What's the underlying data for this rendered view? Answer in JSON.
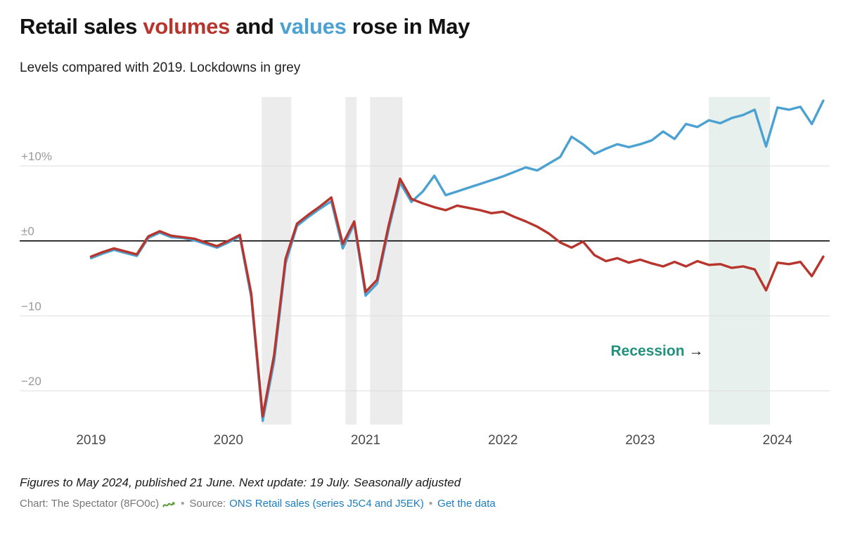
{
  "header": {
    "title_parts": [
      {
        "text": "Retail sales ",
        "color": "#121212"
      },
      {
        "text": "volumes",
        "color": "#b8352d"
      },
      {
        "text": " and ",
        "color": "#121212"
      },
      {
        "text": "values",
        "color": "#4ba1d1"
      },
      {
        "text": " rose in May",
        "color": "#121212"
      }
    ],
    "subtitle": "Levels compared with 2019. Lockdowns in grey"
  },
  "chart_data": {
    "type": "line",
    "title": "Retail sales volumes and values rose in May",
    "subtitle": "Levels compared with 2019. Lockdowns in grey",
    "x_start": 2019.0,
    "x_step_years": 0.0833333,
    "xlim": [
      2018.48,
      2024.38
    ],
    "ylim": [
      -24.5,
      19.2
    ],
    "grid": true,
    "grid_color": "#dedede",
    "zero_line_color": "#000000",
    "axis_text_color": "#9a9a9a",
    "x_text_color": "#4a4a4a",
    "x_ticks": [
      {
        "value": 2019,
        "label": "2019"
      },
      {
        "value": 2020,
        "label": "2020"
      },
      {
        "value": 2021,
        "label": "2021"
      },
      {
        "value": 2022,
        "label": "2022"
      },
      {
        "value": 2023,
        "label": "2023"
      },
      {
        "value": 2024,
        "label": "2024"
      }
    ],
    "y_ticks": [
      {
        "value": 10,
        "label": "+10%"
      },
      {
        "value": 0,
        "label": "±0"
      },
      {
        "value": -10,
        "label": "−10"
      },
      {
        "value": -20,
        "label": "−20"
      }
    ],
    "series": [
      {
        "name": "values",
        "color": "#4ba1d1",
        "values": [
          -2.3,
          -1.7,
          -1.2,
          -1.6,
          -2.0,
          0.4,
          1.1,
          0.5,
          0.4,
          0.1,
          -0.4,
          -0.9,
          -0.2,
          0.6,
          -7.5,
          -24.0,
          -16.0,
          -3.0,
          2.0,
          3.2,
          4.3,
          5.3,
          -1.0,
          2.3,
          -7.3,
          -5.7,
          1.5,
          7.8,
          5.2,
          6.6,
          8.7,
          6.1,
          6.6,
          7.1,
          7.6,
          8.1,
          8.6,
          9.2,
          9.8,
          9.4,
          10.3,
          11.2,
          13.9,
          12.9,
          11.6,
          12.3,
          12.9,
          12.5,
          12.9,
          13.4,
          14.6,
          13.6,
          15.6,
          15.2,
          16.1,
          15.7,
          16.4,
          16.8,
          17.5,
          12.6,
          17.8,
          17.5,
          17.9,
          15.6,
          18.7
        ]
      },
      {
        "name": "volumes",
        "color": "#b8352d",
        "values": [
          -2.1,
          -1.5,
          -1.0,
          -1.4,
          -1.8,
          0.6,
          1.3,
          0.7,
          0.5,
          0.3,
          -0.2,
          -0.7,
          0.0,
          0.8,
          -7.0,
          -23.4,
          -15.2,
          -2.4,
          2.3,
          3.5,
          4.6,
          5.8,
          -0.4,
          2.6,
          -6.8,
          -5.2,
          2.0,
          8.3,
          5.6,
          5.0,
          4.5,
          4.1,
          4.7,
          4.4,
          4.1,
          3.7,
          3.9,
          3.2,
          2.6,
          1.9,
          1.0,
          -0.2,
          -0.9,
          -0.1,
          -1.9,
          -2.7,
          -2.3,
          -2.9,
          -2.5,
          -3.0,
          -3.4,
          -2.8,
          -3.4,
          -2.7,
          -3.2,
          -3.1,
          -3.6,
          -3.4,
          -3.8,
          -6.6,
          -2.9,
          -3.1,
          -2.8,
          -4.7,
          -2.1
        ]
      }
    ],
    "bands": [
      {
        "name": "lockdown-1",
        "kind": "lockdown",
        "x0": 2020.243,
        "x1": 2020.458,
        "color": "#ececec"
      },
      {
        "name": "lockdown-2",
        "kind": "lockdown",
        "x0": 2020.853,
        "x1": 2020.935,
        "color": "#ececec"
      },
      {
        "name": "lockdown-3",
        "kind": "lockdown",
        "x0": 2021.032,
        "x1": 2021.268,
        "color": "#ececec"
      },
      {
        "name": "recession",
        "kind": "recession",
        "x0": 2023.5,
        "x1": 2023.945,
        "color": "#e7f0ed"
      }
    ],
    "annotation": {
      "text": "Recession",
      "arrow": "→",
      "x": 2023.46,
      "y": -15.3,
      "color": "#22917c",
      "arrow_color": "#1a1a1a"
    }
  },
  "footer": {
    "notes": "Figures to May 2024, published 21 June. Next update: 19 July. Seasonally adjusted",
    "credit_prefix": "Chart: The Spectator (8FO0c)",
    "separator": "•",
    "source_label": "Source:",
    "source_link": "ONS Retail sales (series J5C4 and J5EK)",
    "data_link": "Get the data"
  }
}
